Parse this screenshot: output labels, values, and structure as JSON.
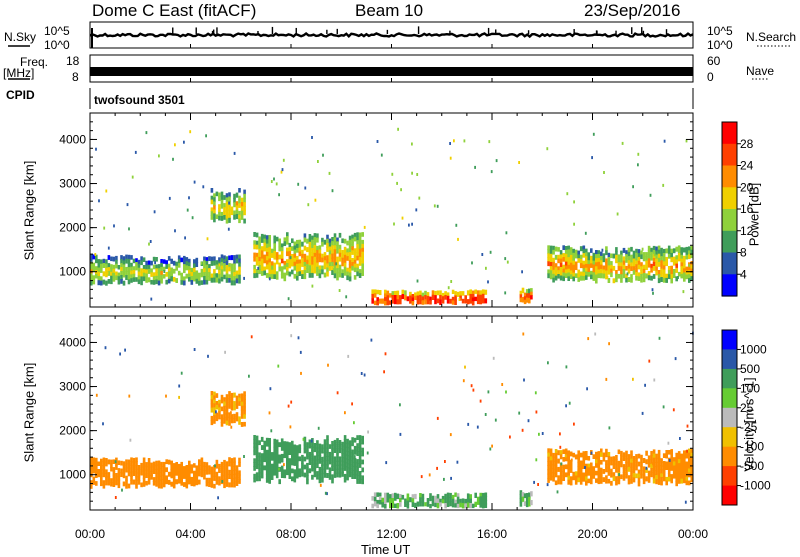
{
  "header": {
    "station": "Dome C East (fitACF)",
    "beam": "Beam 10",
    "date": "23/Sep/2016"
  },
  "strip_labels": {
    "nsky": "N.Sky",
    "nsearch": "N.Search",
    "freq_line1": "Freq.",
    "freq_line2": "[MHz]",
    "nave": "Nave",
    "cpid": "CPID",
    "cpid_value": "twofsound 3501",
    "nsky_ticks": [
      "10^5",
      "10^0"
    ],
    "nsearch_ticks": [
      "10^5",
      "10^0"
    ],
    "freq_ticks": [
      "18",
      "8"
    ],
    "nave_ticks": [
      "60",
      "0"
    ]
  },
  "chart_data": [
    {
      "type": "heatmap",
      "title": "",
      "xlabel": "",
      "ylabel": "Slant Range [km]",
      "xlim_hours": [
        0,
        24
      ],
      "ylim_km": [
        200,
        4600
      ],
      "yticks": [
        1000,
        2000,
        3000,
        4000
      ],
      "colorbar": {
        "label": "Power [dB]",
        "ticks": [
          "28",
          "24",
          "20",
          "16",
          "12",
          "8",
          "4"
        ],
        "colors": [
          "#ff0000",
          "#ff4000",
          "#ff8c00",
          "#f0d000",
          "#8fd13b",
          "#3f9d5a",
          "#2a58a8",
          "#0000ff"
        ]
      },
      "echo_regions": [
        {
          "t_start": 0.0,
          "t_end": 6.0,
          "range_min": 700,
          "range_max": 1400,
          "level": 16
        },
        {
          "t_start": 4.8,
          "t_end": 6.2,
          "range_min": 2100,
          "range_max": 2900,
          "level": 18
        },
        {
          "t_start": 6.5,
          "t_end": 10.9,
          "range_min": 800,
          "range_max": 1900,
          "level": 20
        },
        {
          "t_start": 11.2,
          "t_end": 15.8,
          "range_min": 250,
          "range_max": 600,
          "level": 28
        },
        {
          "t_start": 17.1,
          "t_end": 17.6,
          "range_min": 280,
          "range_max": 650,
          "level": 24
        },
        {
          "t_start": 18.2,
          "t_end": 24.0,
          "range_min": 750,
          "range_max": 1600,
          "level": 20
        }
      ]
    },
    {
      "type": "heatmap",
      "title": "",
      "xlabel": "Time UT",
      "ylabel": "Slant Range [km]",
      "xlim_hours": [
        0,
        24
      ],
      "ylim_km": [
        200,
        4600
      ],
      "yticks": [
        1000,
        2000,
        3000,
        4000
      ],
      "xticks": [
        "00:00",
        "04:00",
        "08:00",
        "12:00",
        "16:00",
        "20:00",
        "00:00"
      ],
      "colorbar": {
        "label": "Velocity [m s^-1]",
        "ticks": [
          "1000",
          "500",
          "100",
          "25",
          "-25",
          "-100",
          "-500",
          "-1000"
        ],
        "colors": [
          "#0000ff",
          "#2a58a8",
          "#3f9d5a",
          "#66cc33",
          "#bbbbbb",
          "#f0c000",
          "#ff8c00",
          "#ff4000",
          "#ff0000"
        ]
      },
      "echo_regions": [
        {
          "t_start": 0.0,
          "t_end": 6.0,
          "range_min": 700,
          "range_max": 1400,
          "velocity": -150
        },
        {
          "t_start": 4.8,
          "t_end": 6.2,
          "range_min": 2100,
          "range_max": 2900,
          "velocity": -120
        },
        {
          "t_start": 6.5,
          "t_end": 10.9,
          "range_min": 800,
          "range_max": 1900,
          "velocity": 150
        },
        {
          "t_start": 11.2,
          "t_end": 15.8,
          "range_min": 250,
          "range_max": 600,
          "velocity": 80
        },
        {
          "t_start": 17.1,
          "t_end": 17.6,
          "range_min": 280,
          "range_max": 650,
          "velocity": 90
        },
        {
          "t_start": 18.2,
          "t_end": 24.0,
          "range_min": 750,
          "range_max": 1600,
          "velocity": -130
        }
      ]
    }
  ]
}
